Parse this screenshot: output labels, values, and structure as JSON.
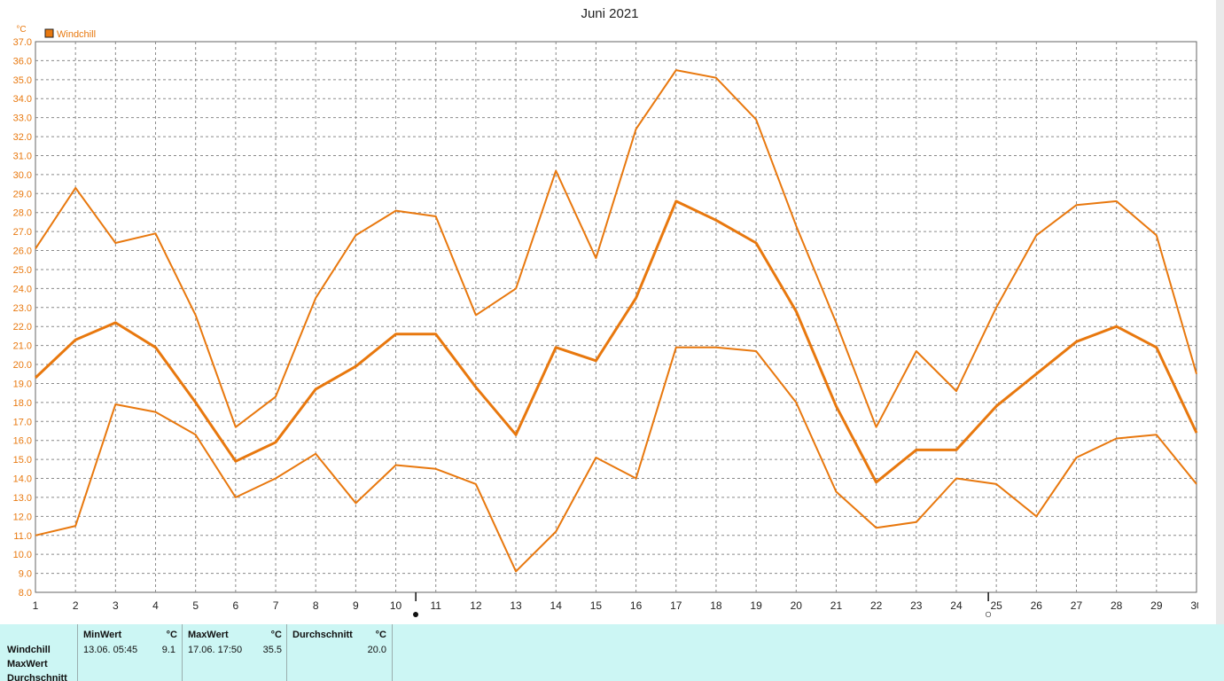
{
  "chart_data": {
    "type": "line",
    "title": "Juni 2021",
    "y_unit": "°C",
    "ylim": [
      9.0,
      37.0
    ],
    "y_ticks": [
      "9.0",
      "10.0",
      "11.0",
      "12.0",
      "13.0",
      "14.0",
      "15.0",
      "16.0",
      "17.0",
      "18.0",
      "19.0",
      "20.0",
      "21.0",
      "22.0",
      "23.0",
      "24.0",
      "25.0",
      "26.0",
      "27.0",
      "28.0",
      "29.0",
      "30.0",
      "31.0",
      "32.0",
      "33.0",
      "34.0",
      "35.0",
      "36.0",
      "37.0"
    ],
    "y_ticks_extra": [
      "8.0"
    ],
    "x": [
      1,
      2,
      3,
      4,
      5,
      6,
      7,
      8,
      9,
      10,
      11,
      12,
      13,
      14,
      15,
      16,
      17,
      18,
      19,
      20,
      21,
      22,
      23,
      24,
      25,
      26,
      27,
      28,
      29,
      30
    ],
    "x_labels": [
      "1",
      "2",
      "3",
      "4",
      "5",
      "6",
      "7",
      "8",
      "9",
      "10",
      "11",
      "12",
      "13",
      "14",
      "15",
      "16",
      "17",
      "18",
      "19",
      "20",
      "21",
      "22",
      "23",
      "24",
      "25",
      "26",
      "27",
      "28",
      "29",
      "30"
    ],
    "legend": [
      {
        "label": "Windchill",
        "color": "#e8780e"
      }
    ],
    "grid": true,
    "series": [
      {
        "role": "max",
        "color": "#e8780e",
        "width": 2,
        "values": [
          26.1,
          29.3,
          26.4,
          26.9,
          22.6,
          16.7,
          18.3,
          23.5,
          26.8,
          28.1,
          27.8,
          22.6,
          24.0,
          30.2,
          25.6,
          32.4,
          35.5,
          35.1,
          32.9,
          27.3,
          22.2,
          16.7,
          20.7,
          18.6,
          23.0,
          26.8,
          28.4,
          28.6,
          26.8,
          19.5
        ]
      },
      {
        "role": "avg",
        "color": "#e8780e",
        "width": 3,
        "values": [
          19.3,
          21.3,
          22.2,
          20.9,
          18.0,
          14.9,
          15.9,
          18.7,
          19.9,
          21.6,
          21.6,
          18.8,
          16.3,
          20.9,
          20.2,
          23.5,
          28.6,
          27.6,
          26.4,
          22.8,
          17.8,
          13.8,
          15.5,
          15.5,
          17.8,
          19.5,
          21.2,
          22.0,
          20.9,
          16.4
        ]
      },
      {
        "role": "min",
        "color": "#e8780e",
        "width": 2,
        "values": [
          11.0,
          11.5,
          17.9,
          17.5,
          16.3,
          13.0,
          14.0,
          15.3,
          12.7,
          14.7,
          14.5,
          13.7,
          9.1,
          11.2,
          15.1,
          14.0,
          20.9,
          20.9,
          20.7,
          18.0,
          13.3,
          11.4,
          11.7,
          14.0,
          13.7,
          12.0,
          15.1,
          16.1,
          16.3,
          13.7
        ]
      }
    ],
    "moon_markers": [
      {
        "x": 10.5,
        "symbol": "●"
      },
      {
        "x": 24.8,
        "symbol": "○"
      }
    ]
  },
  "stats": {
    "row_labels": [
      "Windchill",
      "MaxWert",
      "Durchschnitt"
    ],
    "columns": [
      {
        "header": "MinWert",
        "unit": "°C",
        "date": "13.06.  05:45",
        "value": "9.1"
      },
      {
        "header": "MaxWert",
        "unit": "°C",
        "date": "17.06.  17:50",
        "value": "35.5"
      },
      {
        "header": "Durchschnitt",
        "unit": "°C",
        "date": "",
        "value": "20.0"
      }
    ]
  }
}
